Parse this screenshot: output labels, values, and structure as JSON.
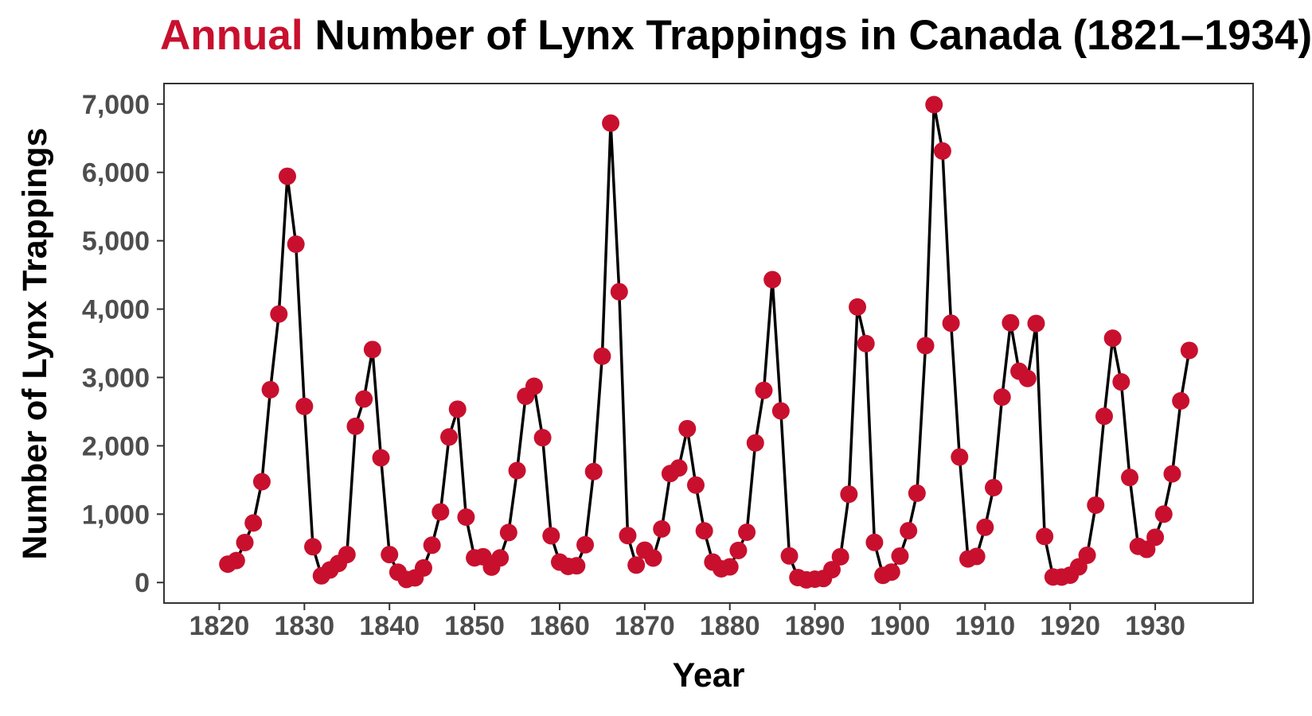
{
  "title": {
    "accent": "Annual",
    "rest": "Number of Lynx Trappings in Canada (1821–1934)"
  },
  "colors": {
    "accent": "#c8102e",
    "line": "#000000",
    "tick_text": "#4d4d4d",
    "frame": "#333333"
  },
  "chart_data": {
    "type": "line",
    "title": "Annual Number of Lynx Trappings in Canada (1821–1934)",
    "xlabel": "Year",
    "ylabel": "Number of Lynx Trappings",
    "xlim": [
      1813.5,
      1941.5
    ],
    "ylim": [
      -300,
      7300
    ],
    "x_ticks": [
      1820,
      1830,
      1840,
      1850,
      1860,
      1870,
      1880,
      1890,
      1900,
      1910,
      1920,
      1930
    ],
    "y_ticks": [
      0,
      1000,
      2000,
      3000,
      4000,
      5000,
      6000,
      7000
    ],
    "y_tick_labels": [
      "0",
      "1,000",
      "2,000",
      "3,000",
      "4,000",
      "5,000",
      "6,000",
      "7,000"
    ],
    "grid": false,
    "legend": false,
    "markers": true,
    "x": [
      1821,
      1822,
      1823,
      1824,
      1825,
      1826,
      1827,
      1828,
      1829,
      1830,
      1831,
      1832,
      1833,
      1834,
      1835,
      1836,
      1837,
      1838,
      1839,
      1840,
      1841,
      1842,
      1843,
      1844,
      1845,
      1846,
      1847,
      1848,
      1849,
      1850,
      1851,
      1852,
      1853,
      1854,
      1855,
      1856,
      1857,
      1858,
      1859,
      1860,
      1861,
      1862,
      1863,
      1864,
      1865,
      1866,
      1867,
      1868,
      1869,
      1870,
      1871,
      1872,
      1873,
      1874,
      1875,
      1876,
      1877,
      1878,
      1879,
      1880,
      1881,
      1882,
      1883,
      1884,
      1885,
      1886,
      1887,
      1888,
      1889,
      1890,
      1891,
      1892,
      1893,
      1894,
      1895,
      1896,
      1897,
      1898,
      1899,
      1900,
      1901,
      1902,
      1903,
      1904,
      1905,
      1906,
      1907,
      1908,
      1909,
      1910,
      1911,
      1912,
      1913,
      1914,
      1915,
      1916,
      1917,
      1918,
      1919,
      1920,
      1921,
      1922,
      1923,
      1924,
      1925,
      1926,
      1927,
      1928,
      1929,
      1930,
      1931,
      1932,
      1933,
      1934
    ],
    "y": [
      269,
      321,
      585,
      871,
      1475,
      2821,
      3928,
      5943,
      4950,
      2577,
      523,
      98,
      184,
      279,
      409,
      2285,
      2685,
      3409,
      1824,
      409,
      151,
      45,
      68,
      213,
      546,
      1033,
      2129,
      2536,
      957,
      361,
      377,
      225,
      360,
      731,
      1638,
      2725,
      2871,
      2119,
      684,
      299,
      236,
      245,
      552,
      1623,
      3311,
      6721,
      4254,
      687,
      255,
      473,
      358,
      784,
      1594,
      1676,
      2251,
      1426,
      756,
      299,
      201,
      229,
      469,
      736,
      2042,
      2811,
      4431,
      2511,
      389,
      73,
      39,
      49,
      59,
      188,
      377,
      1292,
      4031,
      3495,
      587,
      105,
      153,
      387,
      758,
      1307,
      3465,
      6991,
      6313,
      3794,
      1836,
      345,
      382,
      808,
      1388,
      2713,
      3800,
      3091,
      2985,
      3790,
      674,
      81,
      80,
      108,
      229,
      399,
      1132,
      2432,
      3574,
      2935,
      1537,
      529,
      485,
      662,
      1000,
      1590,
      2657,
      3396
    ]
  }
}
